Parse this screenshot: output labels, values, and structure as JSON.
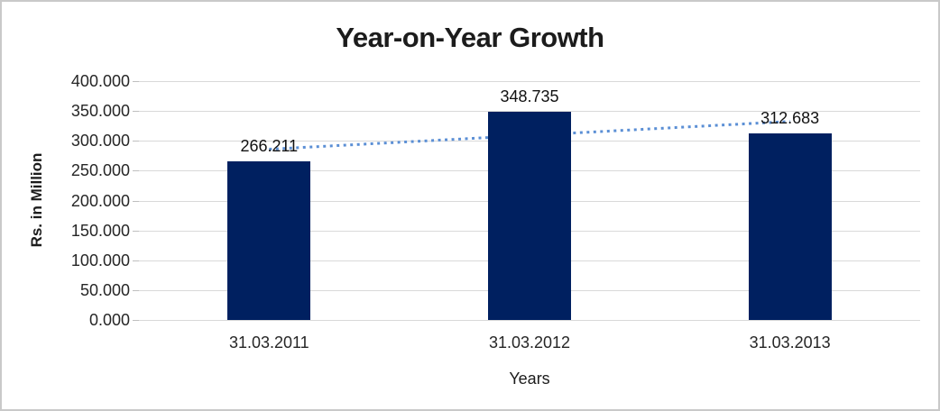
{
  "chart_data": {
    "type": "bar",
    "title": "Year-on-Year Growth",
    "xlabel": "Years",
    "ylabel": "Rs. in Million",
    "categories": [
      "31.03.2011",
      "31.03.2012",
      "31.03.2013"
    ],
    "values": [
      266.211,
      348.735,
      312.683
    ],
    "value_labels": [
      "266.211",
      "348.735",
      "312.683"
    ],
    "y_tick_labels": [
      "0.000",
      "50.000",
      "100.000",
      "150.000",
      "200.000",
      "250.000",
      "300.000",
      "350.000",
      "400.000"
    ],
    "y_tick_values": [
      0,
      50,
      100,
      150,
      200,
      250,
      300,
      350,
      400
    ],
    "ylim": [
      0,
      400
    ],
    "grid": true,
    "legend": false,
    "bar_color": "#002060",
    "gridline_color": "#d9d9d9",
    "tick_color": "#bfbfbf",
    "trendline": {
      "type": "linear",
      "style": "dotted",
      "color": "#5b8fd5",
      "start_value": 285.97,
      "end_value": 332.45
    }
  }
}
